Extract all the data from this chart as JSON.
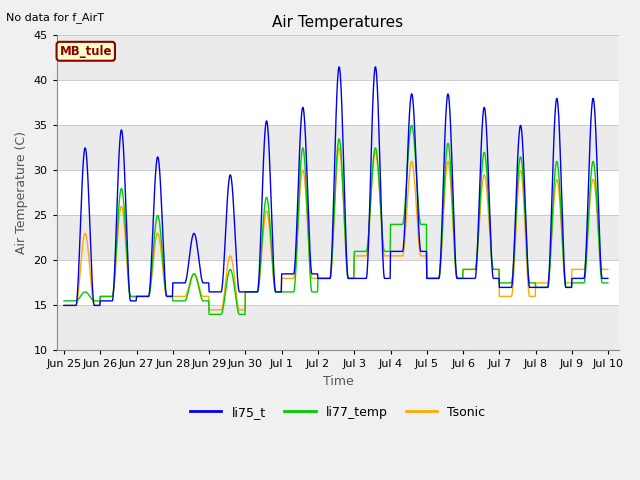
{
  "title": "Air Temperatures",
  "xlabel": "Time",
  "ylabel": "Air Temperature (C)",
  "ylim": [
    10,
    45
  ],
  "annotation_text": "No data for f_AirT",
  "station_label": "MB_tule",
  "fig_bg_color": "#f0f0f0",
  "plot_bg_color": "#ffffff",
  "series": {
    "li75_t": {
      "color": "#0000ee",
      "label": "li75_t"
    },
    "li77_temp": {
      "color": "#00cc00",
      "label": "li77_temp"
    },
    "Tsonic": {
      "color": "#ffaa00",
      "label": "Tsonic"
    }
  },
  "tick_labels": [
    "Jun 25",
    "Jun 26",
    "Jun 27",
    "Jun 28",
    "Jun 29",
    "Jun 30",
    "Jul 1",
    "Jul 2",
    "Jul 3",
    "Jul 4",
    "Jul 5",
    "Jul 6",
    "Jul 7",
    "Jul 8",
    "Jul 9",
    "Jul 10"
  ],
  "tick_positions": [
    0,
    1,
    2,
    3,
    4,
    5,
    6,
    7,
    8,
    9,
    10,
    11,
    12,
    13,
    14,
    15
  ],
  "yticks": [
    10,
    15,
    20,
    25,
    30,
    35,
    40,
    45
  ],
  "li75_peaks": [
    32.5,
    34.5,
    31.5,
    23.0,
    29.5,
    35.5,
    37.0,
    41.5,
    41.5,
    38.5,
    38.5,
    37.0,
    35.0,
    38.0,
    38.0
  ],
  "li75_mins": [
    15.0,
    15.5,
    16.0,
    17.5,
    16.5,
    16.5,
    18.5,
    18.0,
    18.0,
    21.0,
    18.0,
    18.0,
    17.0,
    17.0,
    18.0
  ],
  "li77_peaks": [
    16.5,
    28.0,
    25.0,
    18.5,
    19.0,
    27.0,
    32.5,
    33.5,
    32.5,
    35.0,
    33.0,
    32.0,
    31.5,
    31.0,
    31.0
  ],
  "li77_mins": [
    15.5,
    16.0,
    16.0,
    15.5,
    14.0,
    16.5,
    16.5,
    18.0,
    21.0,
    24.0,
    18.0,
    19.0,
    17.5,
    17.0,
    17.5
  ],
  "tsonic_peaks": [
    23.0,
    26.0,
    23.0,
    18.5,
    20.5,
    25.5,
    30.0,
    32.5,
    32.0,
    31.0,
    31.0,
    29.5,
    30.0,
    29.0,
    29.0
  ],
  "tsonic_mins": [
    15.0,
    16.0,
    16.0,
    16.0,
    14.5,
    16.5,
    18.0,
    18.0,
    20.5,
    20.5,
    18.0,
    19.0,
    16.0,
    17.5,
    19.0
  ]
}
